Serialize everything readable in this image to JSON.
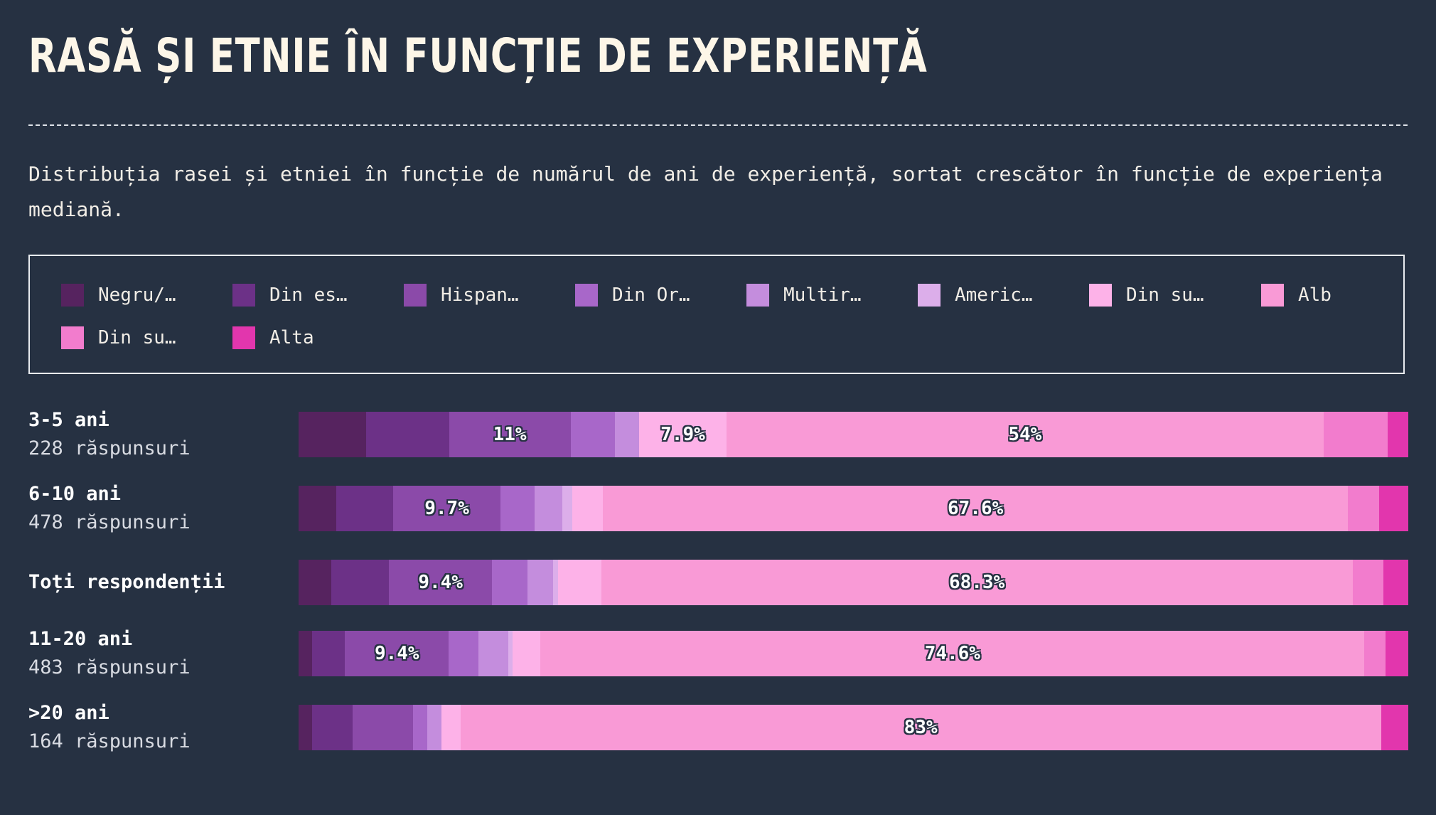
{
  "title": "RASĂ ȘI ETNIE ÎN FUNCȚIE DE EXPERIENȚĂ",
  "subtitle": "Distribuția rasei și etniei în funcție de numărul de ani de experiență, sortat crescător în funcție de experiența mediană.",
  "chart_data": {
    "type": "bar",
    "orientation": "horizontal",
    "stacked": true,
    "legend_position": "top",
    "series": [
      {
        "name": "Negru/…",
        "color": "#56235f"
      },
      {
        "name": "Din es…",
        "color": "#6c3187"
      },
      {
        "name": "Hispan…",
        "color": "#8b4aa9"
      },
      {
        "name": "Din Or…",
        "color": "#a867c9"
      },
      {
        "name": "Multir…",
        "color": "#c48ddd"
      },
      {
        "name": "Americ…",
        "color": "#dcaeea"
      },
      {
        "name": "Din su…",
        "color": "#fdb2e8"
      },
      {
        "name": "Alb",
        "color": "#f99ad6"
      },
      {
        "name": "Din su…",
        "color": "#f27ccd"
      },
      {
        "name": "Alta",
        "color": "#e236ad"
      }
    ],
    "rows": [
      {
        "name": "3-5 ani",
        "count": "228 răspunsuri",
        "values": [
          6.1,
          7.5,
          11.0,
          4.0,
          2.2,
          0.0,
          7.9,
          54.0,
          5.8,
          1.8
        ],
        "labels": [
          "",
          "",
          "11%",
          "",
          "",
          "",
          "7.9%",
          "54%",
          "",
          ""
        ]
      },
      {
        "name": "6-10 ani",
        "count": "478 răspunsuri",
        "values": [
          3.4,
          5.2,
          9.7,
          3.1,
          2.5,
          0.9,
          2.8,
          67.6,
          2.8,
          2.6
        ],
        "labels": [
          "",
          "",
          "9.7%",
          "",
          "",
          "",
          "",
          "67.6%",
          "",
          ""
        ]
      },
      {
        "name": "Toți respondenții",
        "count": "",
        "values": [
          3.0,
          5.2,
          9.4,
          3.2,
          2.3,
          0.5,
          3.9,
          68.3,
          2.8,
          2.2
        ],
        "labels": [
          "",
          "",
          "9.4%",
          "",
          "",
          "",
          "",
          "68.3%",
          "",
          ""
        ]
      },
      {
        "name": "11-20 ani",
        "count": "483 răspunsuri",
        "values": [
          1.2,
          3.0,
          9.4,
          2.7,
          2.7,
          0.4,
          2.5,
          74.6,
          1.9,
          2.0
        ],
        "labels": [
          "",
          "",
          "9.4%",
          "",
          "",
          "",
          "",
          "74.6%",
          "",
          ""
        ]
      },
      {
        "name": ">20 ani",
        "count": "164 răspunsuri",
        "values": [
          1.2,
          3.7,
          5.4,
          1.3,
          1.3,
          0.0,
          1.7,
          83.0,
          0.0,
          2.4
        ],
        "labels": [
          "",
          "",
          "",
          "",
          "",
          "",
          "",
          "83%",
          "",
          ""
        ]
      }
    ]
  }
}
